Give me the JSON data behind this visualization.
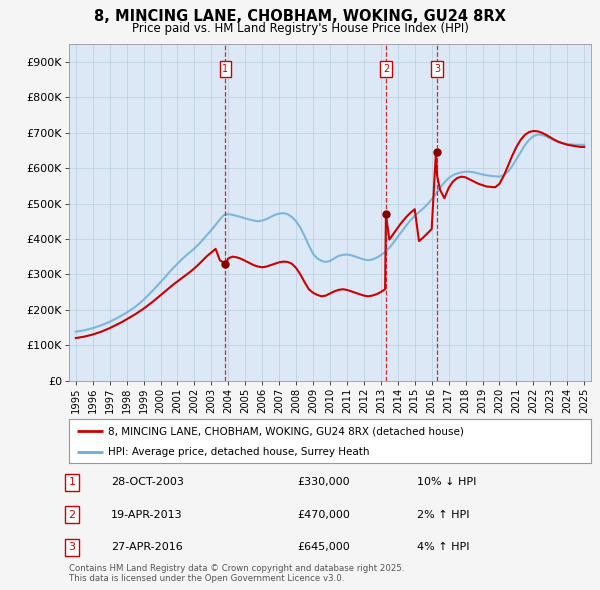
{
  "title": "8, MINCING LANE, CHOBHAM, WOKING, GU24 8RX",
  "subtitle": "Price paid vs. HM Land Registry's House Price Index (HPI)",
  "ylim": [
    0,
    950000
  ],
  "yticks": [
    0,
    100000,
    200000,
    300000,
    400000,
    500000,
    600000,
    700000,
    800000,
    900000
  ],
  "ytick_labels": [
    "£0",
    "£100K",
    "£200K",
    "£300K",
    "£400K",
    "£500K",
    "£600K",
    "£700K",
    "£800K",
    "£900K"
  ],
  "xlim_start": 1994.6,
  "xlim_end": 2025.4,
  "background_color": "#f5f5f5",
  "plot_bg_color": "#dce8f5",
  "red_line_color": "#cc0000",
  "blue_line_color": "#6baed6",
  "dashed_line_color": "#cc0000",
  "legend_label_red": "8, MINCING LANE, CHOBHAM, WOKING, GU24 8RX (detached house)",
  "legend_label_blue": "HPI: Average price, detached house, Surrey Heath",
  "sales": [
    {
      "num": 1,
      "year": 2003.83,
      "price": 330000,
      "date_str": "28-OCT-2003",
      "price_str": "£330,000",
      "hpi_str": "10% ↓ HPI"
    },
    {
      "num": 2,
      "year": 2013.3,
      "price": 470000,
      "date_str": "19-APR-2013",
      "price_str": "£470,000",
      "hpi_str": "2% ↑ HPI"
    },
    {
      "num": 3,
      "year": 2016.32,
      "price": 645000,
      "date_str": "27-APR-2016",
      "price_str": "£645,000",
      "hpi_str": "4% ↑ HPI"
    }
  ],
  "footnote": "Contains HM Land Registry data © Crown copyright and database right 2025.\nThis data is licensed under the Open Government Licence v3.0.",
  "hpi_x": [
    1995.0,
    1995.25,
    1995.5,
    1995.75,
    1996.0,
    1996.25,
    1996.5,
    1996.75,
    1997.0,
    1997.25,
    1997.5,
    1997.75,
    1998.0,
    1998.25,
    1998.5,
    1998.75,
    1999.0,
    1999.25,
    1999.5,
    1999.75,
    2000.0,
    2000.25,
    2000.5,
    2000.75,
    2001.0,
    2001.25,
    2001.5,
    2001.75,
    2002.0,
    2002.25,
    2002.5,
    2002.75,
    2003.0,
    2003.25,
    2003.5,
    2003.75,
    2004.0,
    2004.25,
    2004.5,
    2004.75,
    2005.0,
    2005.25,
    2005.5,
    2005.75,
    2006.0,
    2006.25,
    2006.5,
    2006.75,
    2007.0,
    2007.25,
    2007.5,
    2007.75,
    2008.0,
    2008.25,
    2008.5,
    2008.75,
    2009.0,
    2009.25,
    2009.5,
    2009.75,
    2010.0,
    2010.25,
    2010.5,
    2010.75,
    2011.0,
    2011.25,
    2011.5,
    2011.75,
    2012.0,
    2012.25,
    2012.5,
    2012.75,
    2013.0,
    2013.25,
    2013.5,
    2013.75,
    2014.0,
    2014.25,
    2014.5,
    2014.75,
    2015.0,
    2015.25,
    2015.5,
    2015.75,
    2016.0,
    2016.25,
    2016.5,
    2016.75,
    2017.0,
    2017.25,
    2017.5,
    2017.75,
    2018.0,
    2018.25,
    2018.5,
    2018.75,
    2019.0,
    2019.25,
    2019.5,
    2019.75,
    2020.0,
    2020.25,
    2020.5,
    2020.75,
    2021.0,
    2021.25,
    2021.5,
    2021.75,
    2022.0,
    2022.25,
    2022.5,
    2022.75,
    2023.0,
    2023.25,
    2023.5,
    2023.75,
    2024.0,
    2024.25,
    2024.5,
    2024.75,
    2025.0
  ],
  "hpi_y": [
    138000,
    140000,
    142000,
    145000,
    148000,
    152000,
    156000,
    161000,
    166000,
    172000,
    178000,
    185000,
    192000,
    200000,
    208000,
    218000,
    228000,
    240000,
    252000,
    265000,
    278000,
    291000,
    305000,
    318000,
    330000,
    342000,
    353000,
    363000,
    373000,
    385000,
    398000,
    412000,
    425000,
    440000,
    455000,
    468000,
    470000,
    468000,
    465000,
    462000,
    458000,
    455000,
    452000,
    450000,
    452000,
    456000,
    462000,
    468000,
    472000,
    473000,
    470000,
    462000,
    450000,
    432000,
    408000,
    382000,
    358000,
    345000,
    338000,
    335000,
    338000,
    345000,
    352000,
    355000,
    356000,
    354000,
    350000,
    346000,
    342000,
    340000,
    342000,
    347000,
    354000,
    363000,
    375000,
    390000,
    406000,
    422000,
    438000,
    453000,
    465000,
    476000,
    486000,
    498000,
    512000,
    528000,
    545000,
    560000,
    572000,
    580000,
    585000,
    588000,
    590000,
    590000,
    588000,
    585000,
    582000,
    580000,
    578000,
    577000,
    576000,
    580000,
    590000,
    606000,
    625000,
    645000,
    665000,
    680000,
    690000,
    695000,
    694000,
    690000,
    684000,
    678000,
    673000,
    670000,
    668000,
    667000,
    666000,
    666000,
    666000
  ],
  "red_x": [
    1995.0,
    1995.25,
    1995.5,
    1995.75,
    1996.0,
    1996.25,
    1996.5,
    1996.75,
    1997.0,
    1997.25,
    1997.5,
    1997.75,
    1998.0,
    1998.25,
    1998.5,
    1998.75,
    1999.0,
    1999.25,
    1999.5,
    1999.75,
    2000.0,
    2000.25,
    2000.5,
    2000.75,
    2001.0,
    2001.25,
    2001.5,
    2001.75,
    2002.0,
    2002.25,
    2002.5,
    2002.75,
    2003.0,
    2003.25,
    2003.5,
    2003.75,
    2003.83,
    2004.0,
    2004.25,
    2004.5,
    2004.75,
    2005.0,
    2005.25,
    2005.5,
    2005.75,
    2006.0,
    2006.25,
    2006.5,
    2006.75,
    2007.0,
    2007.25,
    2007.5,
    2007.75,
    2008.0,
    2008.25,
    2008.5,
    2008.75,
    2009.0,
    2009.25,
    2009.5,
    2009.75,
    2010.0,
    2010.25,
    2010.5,
    2010.75,
    2011.0,
    2011.25,
    2011.5,
    2011.75,
    2012.0,
    2012.25,
    2012.5,
    2012.75,
    2013.0,
    2013.25,
    2013.3,
    2013.5,
    2013.75,
    2014.0,
    2014.25,
    2014.5,
    2014.75,
    2015.0,
    2015.25,
    2015.5,
    2015.75,
    2016.0,
    2016.25,
    2016.32,
    2016.5,
    2016.75,
    2017.0,
    2017.25,
    2017.5,
    2017.75,
    2018.0,
    2018.25,
    2018.5,
    2018.75,
    2019.0,
    2019.25,
    2019.5,
    2019.75,
    2020.0,
    2020.25,
    2020.5,
    2020.75,
    2021.0,
    2021.25,
    2021.5,
    2021.75,
    2022.0,
    2022.25,
    2022.5,
    2022.75,
    2023.0,
    2023.25,
    2023.5,
    2023.75,
    2024.0,
    2024.25,
    2024.5,
    2024.75,
    2025.0
  ],
  "red_y": [
    120000,
    122000,
    124000,
    127000,
    130000,
    134000,
    138000,
    143000,
    148000,
    154000,
    160000,
    166000,
    173000,
    180000,
    187000,
    195000,
    203000,
    212000,
    221000,
    231000,
    241000,
    251000,
    261000,
    271000,
    280000,
    289000,
    298000,
    307000,
    317000,
    328000,
    340000,
    352000,
    362000,
    372000,
    340000,
    332000,
    330000,
    345000,
    350000,
    348000,
    344000,
    338000,
    332000,
    326000,
    322000,
    320000,
    322000,
    326000,
    330000,
    334000,
    336000,
    335000,
    330000,
    318000,
    300000,
    278000,
    258000,
    248000,
    242000,
    238000,
    240000,
    246000,
    252000,
    256000,
    258000,
    256000,
    252000,
    248000,
    244000,
    240000,
    238000,
    240000,
    244000,
    250000,
    258000,
    470000,
    398000,
    415000,
    432000,
    448000,
    462000,
    474000,
    484000,
    394000,
    404000,
    416000,
    428000,
    645000,
    578000,
    538000,
    515000,
    544000,
    562000,
    572000,
    576000,
    574000,
    568000,
    562000,
    556000,
    552000,
    548000,
    547000,
    546000,
    556000,
    578000,
    606000,
    635000,
    660000,
    680000,
    694000,
    702000,
    705000,
    704000,
    700000,
    694000,
    687000,
    680000,
    674000,
    670000,
    666000,
    664000,
    662000,
    660000,
    660000
  ]
}
